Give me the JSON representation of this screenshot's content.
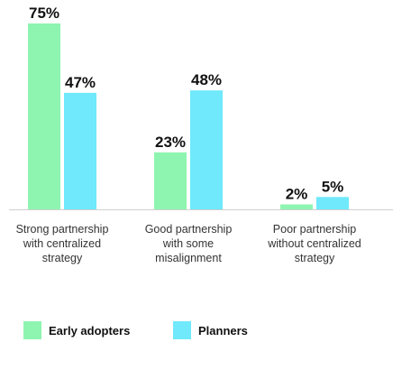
{
  "chart_data": {
    "type": "bar",
    "categories": [
      [
        "Strong partnership",
        "with centralized",
        "strategy"
      ],
      [
        "Good partnership",
        "with some",
        "misalignment"
      ],
      [
        "Poor partnership",
        "without centralized",
        "strategy"
      ]
    ],
    "series": [
      {
        "name": "Early adopters",
        "values": [
          75,
          23,
          2
        ],
        "labels": [
          "75%",
          "23%",
          "2%"
        ],
        "color": "#8ef5b0"
      },
      {
        "name": "Planners",
        "values": [
          47,
          48,
          5
        ],
        "labels": [
          "47%",
          "48%",
          "5%"
        ],
        "color": "#6fe9fb"
      }
    ],
    "ylim": [
      0,
      75
    ],
    "grid": false,
    "legend_position": "bottom-left",
    "axis_color": "#cfcfcf"
  }
}
